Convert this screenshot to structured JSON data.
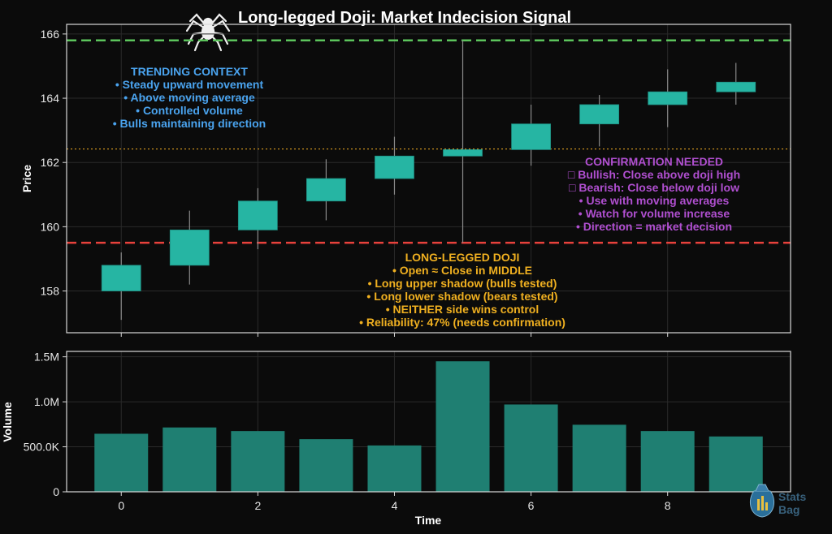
{
  "colors": {
    "background": "#0b0b0b",
    "frame": "#d8d8d8",
    "candle": "#26b5a3",
    "volume_bar": "#1f7f72",
    "upper_line": "#5cc45c",
    "lower_line": "#e8413c",
    "mid_line": "#e0a020",
    "trend_text": "#4aa3ee",
    "doji_text": "#f0b020",
    "confirm_text": "#b04fd0",
    "tick_text": "#e6e6e6"
  },
  "chart_data": [
    {
      "type": "candlestick",
      "title": "Long-legged Doji: Market Indecision Signal",
      "title_icon": "spider-icon",
      "ylabel": "Price",
      "ylim": [
        156.7,
        166.3
      ],
      "xlim": [
        -0.8,
        9.8
      ],
      "grid": true,
      "yticks": [
        158,
        160,
        162,
        164,
        166
      ],
      "candles": [
        {
          "x": 0,
          "open": 158.0,
          "close": 158.8,
          "high": 159.2,
          "low": 157.1
        },
        {
          "x": 1,
          "open": 158.8,
          "close": 159.9,
          "high": 160.5,
          "low": 158.2
        },
        {
          "x": 2,
          "open": 159.9,
          "close": 160.8,
          "high": 161.2,
          "low": 159.3
        },
        {
          "x": 3,
          "open": 160.8,
          "close": 161.5,
          "high": 162.1,
          "low": 160.2
        },
        {
          "x": 4,
          "open": 161.5,
          "close": 162.2,
          "high": 162.8,
          "low": 161.0
        },
        {
          "x": 5,
          "open": 162.2,
          "close": 162.4,
          "high": 165.8,
          "low": 159.5
        },
        {
          "x": 6,
          "open": 162.4,
          "close": 163.2,
          "high": 163.8,
          "low": 161.9
        },
        {
          "x": 7,
          "open": 163.2,
          "close": 163.8,
          "high": 164.1,
          "low": 162.5
        },
        {
          "x": 8,
          "open": 163.8,
          "close": 164.2,
          "high": 164.9,
          "low": 163.1
        },
        {
          "x": 9,
          "open": 164.2,
          "close": 164.5,
          "high": 165.1,
          "low": 163.8
        }
      ],
      "reference_lines": [
        {
          "value": 165.8,
          "style": "dashed",
          "color": "#5cc45c"
        },
        {
          "value": 159.5,
          "style": "dashed",
          "color": "#e8413c"
        },
        {
          "value": 162.42,
          "style": "dotted",
          "color": "#e0a020"
        }
      ],
      "annotations": {
        "trending_context": {
          "heading": "TRENDING CONTEXT",
          "lines": [
            "• Steady upward movement",
            "• Above moving average",
            "• Controlled volume",
            "• Bulls maintaining direction"
          ]
        },
        "confirmation_needed": {
          "heading": "CONFIRMATION NEEDED",
          "lines": [
            "□ Bullish: Close above doji high",
            "□ Bearish: Close below doji low",
            "• Use with moving averages",
            "• Watch for volume increase",
            "• Direction = market decision"
          ]
        },
        "long_legged_doji": {
          "heading": "LONG-LEGGED DOJI",
          "lines": [
            "• Open ≈ Close in MIDDLE",
            "• Long upper shadow (bulls tested)",
            "• Long lower shadow (bears tested)",
            "• NEITHER side wins control",
            "• Reliability: 47% (needs confirmation)"
          ]
        }
      }
    },
    {
      "type": "bar",
      "xlabel": "Time",
      "ylabel": "Volume",
      "x": [
        0,
        1,
        2,
        3,
        4,
        5,
        6,
        7,
        8,
        9
      ],
      "values": [
        645000,
        715000,
        675000,
        585000,
        515000,
        1450000,
        970000,
        745000,
        675000,
        615000
      ],
      "ylim": [
        0,
        1560000
      ],
      "yticks": [
        0,
        500000,
        1000000,
        1500000
      ],
      "ytick_labels": [
        "0",
        "500.0K",
        "1.0M",
        "1.5M"
      ],
      "xticks": [
        0,
        2,
        4,
        6,
        8
      ],
      "xtick_labels": [
        "0",
        "2",
        "4",
        "6",
        "8"
      ],
      "grid": true
    }
  ],
  "watermark": {
    "line1": "Stats",
    "line2": "Bag"
  }
}
